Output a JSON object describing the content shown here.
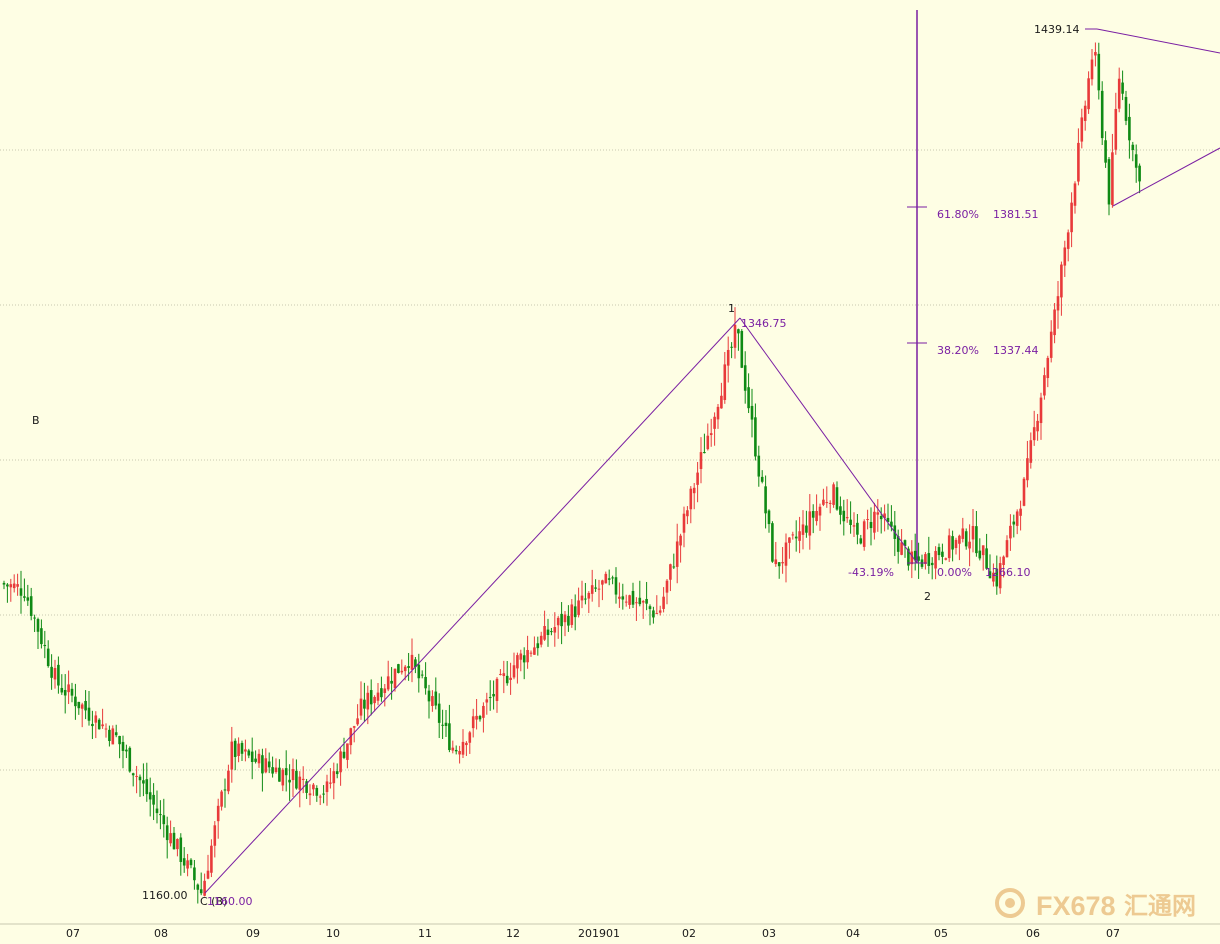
{
  "colors": {
    "background": "#fefee4",
    "up_candle": "#e83a3a",
    "down_candle": "#0f8a14",
    "drawing": "#7a1fa2",
    "label_text": "#7a1fa2",
    "axis_text": "#1a1a1a",
    "grid": "#c8c8b0"
  },
  "x_axis": {
    "ticks": [
      "07",
      "08",
      "09",
      "10",
      "11",
      "12",
      "201901",
      "02",
      "03",
      "04",
      "05",
      "06",
      "07"
    ]
  },
  "annotations": {
    "wave_b": "B",
    "wave_1": "1",
    "wave_2": "2",
    "wave_c_b": "C (B)",
    "low_price": "1160.00",
    "low_price_echo": "1160.00",
    "peak_1_price": "1346.75",
    "high_price": "1439.14"
  },
  "fibonacci": {
    "levels": [
      {
        "percent": "61.80%",
        "price": "1381.51"
      },
      {
        "percent": "38.20%",
        "price": "1337.44"
      },
      {
        "percent": "0.00%",
        "price": "1266.10"
      }
    ],
    "retracement_label": "-43.19%"
  },
  "watermark": {
    "brand": "FX678",
    "chinese": "汇通网"
  },
  "chart_data": {
    "type": "candlestick",
    "instrument_note": "",
    "y_range_approx": [
      1160,
      1440
    ],
    "key_levels": [
      {
        "name": "wave B start",
        "value": 1255
      },
      {
        "name": "C (B) low",
        "value": 1160.0
      },
      {
        "name": "wave 1 high",
        "value": 1346.75
      },
      {
        "name": "wave 2 low",
        "value": 1266.1
      },
      {
        "name": "fib 38.2%",
        "value": 1337.44
      },
      {
        "name": "fib 61.8%",
        "value": 1381.51
      },
      {
        "name": "recent high",
        "value": 1439.14
      }
    ],
    "swing_path": [
      {
        "label": "B",
        "value": 1255
      },
      {
        "label": "C (B)",
        "value": 1160.0
      },
      {
        "label": "1",
        "value": 1346.75
      },
      {
        "label": "2",
        "value": 1266.1
      },
      {
        "label": "",
        "value": 1439.14
      }
    ],
    "months": [
      "07",
      "08",
      "09",
      "10",
      "11",
      "12",
      "201901",
      "02",
      "03",
      "04",
      "05",
      "06",
      "07"
    ],
    "grid": true
  }
}
